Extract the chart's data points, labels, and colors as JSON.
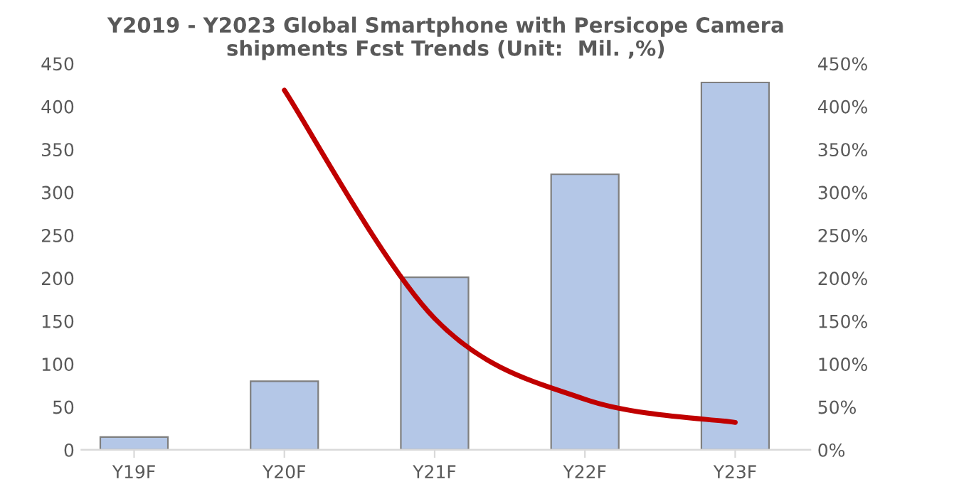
{
  "chart_data": {
    "type": "bar",
    "title": "Y2019 - Y2023 Global Smartphone with Persicope Camera\nshipments Fcst Trends (Unit:  Mil. ,%)",
    "categories": [
      "Y19F",
      "Y20F",
      "Y21F",
      "Y22F",
      "Y23F"
    ],
    "series": [
      {
        "color": "#b4c7e7",
        "values": [
          15,
          80,
          201,
          321,
          428
        ]
      },
      {
        "type": "line",
        "axis": "y2",
        "color": "#c00000",
        "values": [
          null,
          419,
          153,
          59,
          32
        ]
      }
    ],
    "ylim": [
      0,
      450
    ],
    "yticks": [
      0,
      50,
      100,
      150,
      200,
      250,
      300,
      350,
      400,
      450
    ],
    "y2lim": [
      0,
      450
    ],
    "y2ticks": [
      {
        "value": 0,
        "label": "0%"
      },
      {
        "value": 50,
        "label": "50%"
      },
      {
        "value": 100,
        "label": "100%"
      },
      {
        "value": 150,
        "label": "150%"
      },
      {
        "value": 200,
        "label": "200%"
      },
      {
        "value": 250,
        "label": "250%"
      },
      {
        "value": 300,
        "label": "300%"
      },
      {
        "value": 350,
        "label": "350%"
      },
      {
        "value": 400,
        "label": "400%"
      },
      {
        "value": 450,
        "label": "450%"
      }
    ],
    "grid": false
  }
}
